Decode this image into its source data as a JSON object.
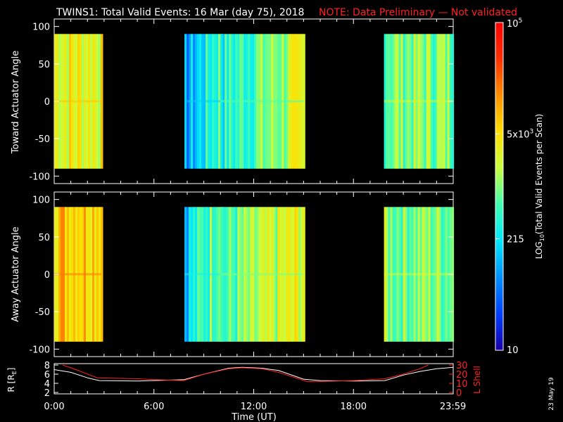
{
  "header": {
    "title": "TWINS1: Total Valid Events: 16 Mar (day  75), 2018",
    "note": "NOTE: Data Preliminary — Not validated"
  },
  "side_stamp": "23 May 19",
  "colors": {
    "background": "#000000",
    "foreground": "#ffffff",
    "note": "#ff2020",
    "orbit_r": "#ffffff",
    "orbit_l": "#ff2020",
    "colormap": [
      "#1a00a8",
      "#0040ff",
      "#0090ff",
      "#00e8ff",
      "#40ffb0",
      "#c8ff40",
      "#ffe000",
      "#ff9000",
      "#ff3000",
      "#ff0000"
    ]
  },
  "chart_data": [
    {
      "type": "heatmap",
      "ylabel": "Toward Actuator Angle",
      "xlim": [
        "0:00",
        "23:59"
      ],
      "ylim": [
        -110,
        110
      ],
      "y_ticks": [
        "100",
        "50",
        "0",
        "-50",
        "-100"
      ],
      "data_angle_range": [
        -90,
        90
      ],
      "color_scale_fraction": [
        {
          "start": "0:00",
          "end": "2:50",
          "level": 0.62
        },
        {
          "start": "7:50",
          "end": "10:00",
          "level": 0.22
        },
        {
          "start": "10:00",
          "end": "15:00",
          "level": 0.38
        },
        {
          "start": "19:50",
          "end": "23:59",
          "level": 0.5
        }
      ]
    },
    {
      "type": "heatmap",
      "ylabel": "Away Actuator Angle",
      "xlim": [
        "0:00",
        "23:59"
      ],
      "ylim": [
        -110,
        110
      ],
      "y_ticks": [
        "100",
        "50",
        "0",
        "-50",
        "-100"
      ],
      "data_angle_range": [
        -90,
        90
      ],
      "color_scale_fraction": [
        {
          "start": "0:00",
          "end": "2:50",
          "level": 0.72
        },
        {
          "start": "7:50",
          "end": "10:00",
          "level": 0.3
        },
        {
          "start": "10:00",
          "end": "15:00",
          "level": 0.42
        },
        {
          "start": "19:50",
          "end": "23:59",
          "level": 0.5
        }
      ]
    },
    {
      "type": "line",
      "xlabel": "Time (UT)",
      "ylabel_left": "R [R",
      "ylabel_left_sub": "E",
      "ylabel_left_end": "]",
      "ylabel_right": "L Shell",
      "left_ticks": [
        "8",
        "6",
        "4",
        "2"
      ],
      "right_ticks": [
        "30",
        "20",
        "10",
        "0"
      ],
      "x_ticks": [
        "0:00",
        "6:00",
        "12:00",
        "18:00",
        "23:59"
      ],
      "series": [
        {
          "name": "R",
          "x_hours": [
            0,
            1,
            2,
            2.7,
            5,
            7.8,
            9,
            10.5,
            11.3,
            12.5,
            13.5,
            15,
            16,
            18,
            19.9,
            21,
            22,
            23,
            24
          ],
          "values": [
            7,
            6.4,
            5.2,
            4.6,
            4.5,
            4.8,
            6,
            7.3,
            7.5,
            7.3,
            6.8,
            4.9,
            4.6,
            4.5,
            4.6,
            5.8,
            6.6,
            7.2,
            7.5
          ]
        },
        {
          "name": "L",
          "x_hours": [
            0.5,
            1,
            2.6,
            5,
            6,
            7.8,
            9,
            10.5,
            11.3,
            12.5,
            13.5,
            15.2,
            16,
            18,
            19.9,
            21,
            22,
            22.5
          ],
          "values": [
            30,
            27,
            16,
            15,
            14,
            13,
            20,
            26,
            27,
            26,
            22,
            12,
            12,
            13,
            15,
            20,
            26,
            30
          ]
        }
      ],
      "ylim_left": [
        2,
        8
      ],
      "ylim_right": [
        0,
        30
      ]
    }
  ],
  "colorbar": {
    "label": "LOG10(Total Valid Events per Scan)",
    "label_main": "LOG",
    "label_sub": "10",
    "label_rest": "(Total Valid  Events  per  Scan)",
    "ticks": [
      "10",
      "215",
      "5x10",
      "10"
    ],
    "tick_exponents": [
      "",
      "",
      "3",
      "5"
    ],
    "tick_fraction": [
      0,
      0.34,
      0.66,
      1
    ]
  }
}
